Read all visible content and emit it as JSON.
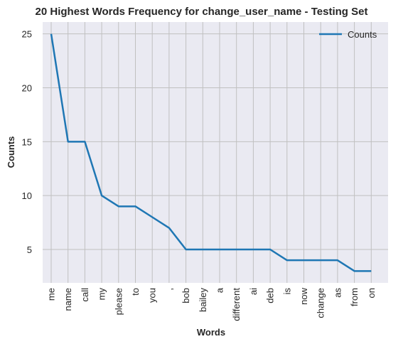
{
  "chart_data": {
    "type": "line",
    "title": "20 Highest Words Frequency for change_user_name - Testing Set",
    "xlabel": "Words",
    "ylabel": "Counts",
    "categories": [
      "me",
      "name",
      "call",
      "my",
      "please",
      "to",
      "you",
      ",",
      "bob",
      "bailey",
      "a",
      "different",
      "ai",
      "deb",
      "is",
      "now",
      "change",
      "as",
      "from",
      "on"
    ],
    "series": [
      {
        "name": "Counts",
        "values": [
          25,
          15,
          15,
          10,
          9,
          9,
          8,
          7,
          5,
          5,
          5,
          5,
          5,
          5,
          4,
          4,
          4,
          4,
          3,
          3
        ]
      }
    ],
    "yticks": [
      5,
      10,
      15,
      20,
      25
    ],
    "ylim": [
      1.9,
      26.1
    ],
    "grid": true,
    "legend_position": "top-right",
    "colors": {
      "line": "#1f77b4",
      "plot_bg": "#eaeaf2",
      "grid": "#c0c0c0"
    }
  }
}
